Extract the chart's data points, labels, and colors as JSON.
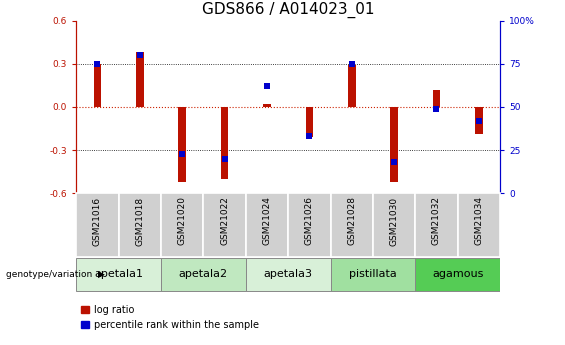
{
  "title": "GDS866 / A014023_01",
  "samples": [
    "GSM21016",
    "GSM21018",
    "GSM21020",
    "GSM21022",
    "GSM21024",
    "GSM21026",
    "GSM21028",
    "GSM21030",
    "GSM21032",
    "GSM21034"
  ],
  "log_ratio": [
    0.3,
    0.38,
    -0.52,
    -0.5,
    0.02,
    -0.21,
    0.29,
    -0.52,
    0.12,
    -0.19
  ],
  "percentile_rank": [
    75,
    80,
    23,
    20,
    62,
    33,
    75,
    18,
    49,
    42
  ],
  "ylim": [
    -0.6,
    0.6
  ],
  "yticks_left": [
    -0.6,
    -0.3,
    0.0,
    0.3,
    0.6
  ],
  "yticks_right": [
    0,
    25,
    50,
    75,
    100
  ],
  "bar_color": "#bb1100",
  "dot_color": "#0000cc",
  "zero_line_color": "#cc2200",
  "grid_color": "#000000",
  "groups": [
    {
      "label": "apetala1",
      "samples": [
        0,
        1
      ],
      "color": "#d8f0d8"
    },
    {
      "label": "apetala2",
      "samples": [
        2,
        3
      ],
      "color": "#c0e8c0"
    },
    {
      "label": "apetala3",
      "samples": [
        4,
        5
      ],
      "color": "#d8f0d8"
    },
    {
      "label": "pistillata",
      "samples": [
        6,
        7
      ],
      "color": "#a0e0a0"
    },
    {
      "label": "agamous",
      "samples": [
        8,
        9
      ],
      "color": "#55cc55"
    }
  ],
  "bar_width": 0.18,
  "dot_size": 18,
  "title_fontsize": 11,
  "tick_fontsize": 6.5,
  "label_fontsize": 8,
  "group_label_fontsize": 8,
  "legend_fontsize": 7
}
